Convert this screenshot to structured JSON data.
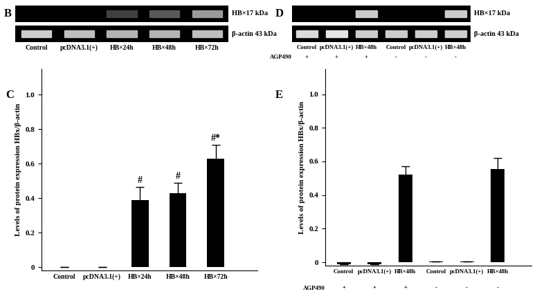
{
  "chart_data": [
    {
      "type": "bar",
      "panel": "C",
      "categories": [
        "Control",
        "pcDNA3.1(+)",
        "HB×24h",
        "HB×48h",
        "HB×72h"
      ],
      "values": [
        0,
        0,
        0.39,
        0.43,
        0.63
      ],
      "errors": [
        0,
        0,
        0.075,
        0.06,
        0.08
      ],
      "annotations": [
        {
          "index": 2,
          "text": "#"
        },
        {
          "index": 3,
          "text": "#"
        },
        {
          "index": 4,
          "text": "#*"
        }
      ],
      "y_label": "Levels of protein expression HBx/β-actin",
      "ylim": [
        -0.02,
        1.15
      ],
      "yticks": [
        0,
        0.2,
        0.4,
        0.6,
        0.8,
        1.0
      ],
      "color": "#000000"
    },
    {
      "type": "bar",
      "panel": "E",
      "categories": [
        "Control",
        "pcDNA3.1(+)",
        "HB×48h",
        "Control",
        "pcDNA3.1(+)",
        "HB×48h"
      ],
      "values": [
        -0.01,
        -0.01,
        0.52,
        0.005,
        0.005,
        0.555
      ],
      "errors": [
        0,
        0,
        0.05,
        0,
        0,
        0.065
      ],
      "treatment": {
        "label": "AGP490",
        "values": [
          "+",
          "+",
          "+",
          "-",
          "-",
          "-"
        ]
      },
      "y_label": "Levels of protein expression HBx/β-actin",
      "ylim": [
        -0.02,
        1.15
      ],
      "yticks": [
        0,
        0.2,
        0.4,
        0.6,
        0.8,
        1.0
      ],
      "color": "#000000"
    }
  ],
  "blots": [
    {
      "panel": "B",
      "lanes": [
        "Control",
        "pcDNA3.1(+)",
        "HB×24h",
        "HB×48h",
        "HB×72h"
      ],
      "bands": [
        {
          "label": "HB×17 kDa",
          "intensity": [
            0,
            0,
            0.25,
            0.35,
            0.6
          ]
        },
        {
          "label": "β-actin 43 kDa",
          "intensity": [
            0.8,
            0.75,
            0.7,
            0.7,
            0.75
          ]
        }
      ]
    },
    {
      "panel": "D",
      "lanes": [
        "Control",
        "pcDNA3.1(+)",
        "HB×48h",
        "Control",
        "pcDNA3.1(+)",
        "HB×48h"
      ],
      "treatment": {
        "label": "AGP490",
        "values": [
          "+",
          "+",
          "+",
          "-",
          "-",
          "-"
        ]
      },
      "bands": [
        {
          "label": "HB×17 kDa",
          "intensity": [
            0,
            0,
            0.8,
            0,
            0,
            0.8
          ]
        },
        {
          "label": "β-actin 43 kDa",
          "intensity": [
            0.85,
            0.9,
            0.8,
            0.8,
            0.8,
            0.8
          ]
        }
      ]
    }
  ]
}
